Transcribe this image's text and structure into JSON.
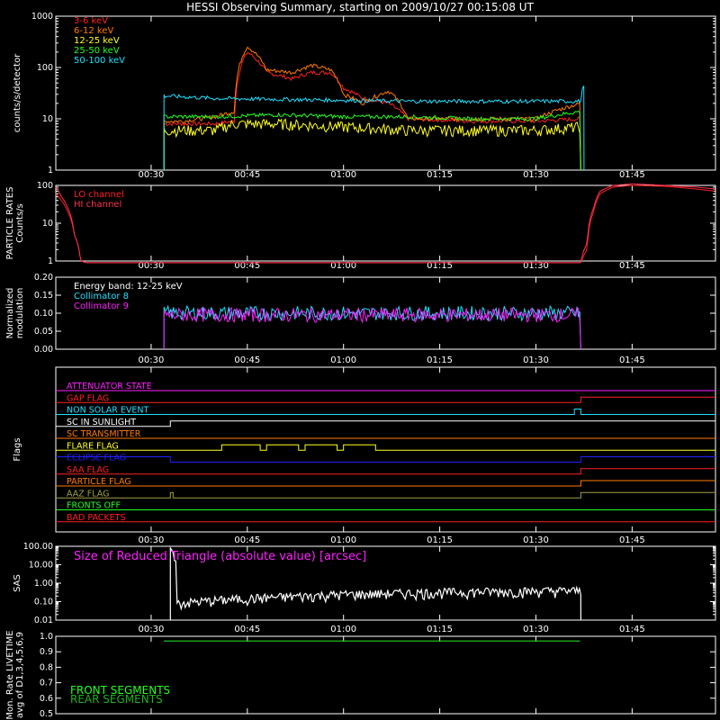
{
  "title": "HESSI Observing Summary, starting on 2009/10/27 00:15:08 UT",
  "time_ticks": [
    "00:30",
    "00:45",
    "01:00",
    "01:15",
    "01:30",
    "01:45"
  ],
  "colors": {
    "bg": "#000000",
    "axes": "#ffffff",
    "e3_6": "#ff2020",
    "e6_12": "#ff7a00",
    "e12_25": "#ffff20",
    "e25_50": "#20ff20",
    "e50_100": "#20e0ff",
    "lo": "#ff2020",
    "hi": "#ff3050",
    "col8": "#20e0ff",
    "col9": "#ff20ff",
    "sas": "#ff20ff",
    "front": "#20ff20",
    "rear": "#20b020"
  },
  "chart_data": [
    {
      "type": "line",
      "name": "count-rates",
      "ylabel": "counts/s/detector",
      "yscale": "log",
      "ylim": [
        1,
        1000
      ],
      "yticks": [
        "1",
        "10",
        "100",
        "1000"
      ],
      "x_range": [
        "00:15:08",
        "01:58"
      ],
      "legend_position": "top-left",
      "series": [
        {
          "name": "3-6 keV",
          "x": [
            "00:32",
            "00:35",
            "00:40",
            "00:43",
            "00:45",
            "00:48",
            "00:52",
            "00:55",
            "00:58",
            "01:00",
            "01:03",
            "01:07",
            "01:10",
            "01:20",
            "01:30",
            "01:37"
          ],
          "y": [
            8,
            8,
            8,
            9,
            200,
            80,
            60,
            80,
            80,
            40,
            25,
            20,
            10,
            9,
            9,
            10
          ]
        },
        {
          "name": "6-12 keV",
          "x": [
            "00:32",
            "00:35",
            "00:40",
            "00:43",
            "00:45",
            "00:48",
            "00:52",
            "00:55",
            "00:58",
            "01:00",
            "01:03",
            "01:07",
            "01:10",
            "01:20",
            "01:30",
            "01:37"
          ],
          "y": [
            9,
            9,
            11,
            14,
            260,
            90,
            80,
            110,
            90,
            30,
            20,
            35,
            10,
            10,
            10,
            20
          ]
        },
        {
          "name": "12-25 keV",
          "x": [
            "00:32",
            "00:40",
            "00:43",
            "00:50",
            "01:00",
            "01:10",
            "01:20",
            "01:30",
            "01:37"
          ],
          "y": [
            6,
            6,
            8,
            8,
            7,
            6,
            6,
            6,
            7
          ]
        },
        {
          "name": "25-50 keV",
          "x": [
            "00:32",
            "00:40",
            "00:50",
            "01:00",
            "01:10",
            "01:20",
            "01:30",
            "01:37"
          ],
          "y": [
            11,
            11,
            12,
            11,
            11,
            10,
            10,
            14
          ]
        },
        {
          "name": "50-100 keV",
          "x": [
            "00:32",
            "00:40",
            "00:50",
            "01:00",
            "01:10",
            "01:20",
            "01:30",
            "01:37",
            "01:37:30"
          ],
          "y": [
            28,
            25,
            24,
            23,
            22,
            22,
            22,
            22,
            50
          ]
        }
      ]
    },
    {
      "type": "line",
      "name": "particle-rates",
      "ylabel": "PARTICLE RATES Counts/s",
      "yscale": "log",
      "ylim": [
        1,
        100
      ],
      "yticks": [
        "1",
        "10",
        "100"
      ],
      "series": [
        {
          "name": "LO channel",
          "x": [
            "00:15:08",
            "00:16",
            "00:17",
            "00:18",
            "00:19",
            "00:20",
            "01:37",
            "01:38",
            "01:39",
            "01:40",
            "01:42",
            "01:45",
            "01:50",
            "01:55",
            "01:58"
          ],
          "y": [
            60,
            40,
            20,
            5,
            1,
            0.9,
            0.9,
            2,
            20,
            60,
            90,
            100,
            95,
            80,
            70
          ]
        },
        {
          "name": "HI channel",
          "x": [
            "00:15:08",
            "00:16",
            "00:17",
            "00:18",
            "00:19",
            "00:20",
            "01:37",
            "01:38",
            "01:39",
            "01:40",
            "01:42",
            "01:45",
            "01:50",
            "01:55",
            "01:58"
          ],
          "y": [
            90,
            50,
            25,
            5,
            1,
            0.9,
            0.9,
            3,
            25,
            70,
            100,
            110,
            100,
            90,
            80
          ]
        }
      ]
    },
    {
      "type": "line",
      "name": "modulation",
      "ylabel": "Normalized modulation",
      "ylim": [
        0,
        0.2
      ],
      "yticks": [
        "0.00",
        "0.05",
        "0.10",
        "0.15",
        "0.20"
      ],
      "annotation": "Energy band: 12-25 keV",
      "series": [
        {
          "name": "Collimator 8",
          "x": [
            "00:32",
            "01:37"
          ],
          "y": [
            0.1,
            0.1
          ]
        },
        {
          "name": "Collimator 9",
          "x": [
            "00:32",
            "01:37"
          ],
          "y": [
            0.095,
            0.095
          ]
        }
      ]
    },
    {
      "type": "line",
      "name": "flags",
      "ylabel": "Flags",
      "series": [
        {
          "name": "ATTENUATOR STATE",
          "color": "#ff20ff",
          "x": [],
          "y": []
        },
        {
          "name": "GAP FLAG",
          "color": "#ff2020",
          "x": [
            "01:37"
          ],
          "y": [
            1
          ]
        },
        {
          "name": "NON SOLAR EVENT",
          "color": "#20e0ff",
          "x": [
            "01:36",
            "01:37"
          ],
          "y": [
            1,
            0
          ]
        },
        {
          "name": "SC IN SUNLIGHT",
          "color": "#ffffff",
          "x": [
            "00:33"
          ],
          "y": [
            1
          ]
        },
        {
          "name": "SC TRANSMITTER",
          "color": "#ff7a00",
          "x": [],
          "y": []
        },
        {
          "name": "FLARE FLAG",
          "color": "#ffff20",
          "x": [
            "00:41",
            "00:47",
            "00:48",
            "00:53",
            "00:54",
            "00:59",
            "01:00",
            "01:05"
          ],
          "y": [
            1,
            0,
            1,
            0,
            1,
            0,
            1,
            0
          ]
        },
        {
          "name": "ECLIPSE FLAG",
          "color": "#2020ff",
          "x": [
            "00:33",
            "01:37"
          ],
          "y": [
            0,
            1
          ]
        },
        {
          "name": "SAA FLAG",
          "color": "#ff2020",
          "x": [
            "01:37"
          ],
          "y": [
            1
          ]
        },
        {
          "name": "PARTICLE FLAG",
          "color": "#ff7a00",
          "x": [
            "01:37"
          ],
          "y": [
            1
          ]
        },
        {
          "name": "AAZ FLAG",
          "color": "#a0a040",
          "x": [
            "00:33",
            "01:37"
          ],
          "y": [
            1,
            1
          ]
        },
        {
          "name": "FRONTS OFF",
          "color": "#20ff20",
          "x": [],
          "y": []
        },
        {
          "name": "BAD PACKETS",
          "color": "#ff2020",
          "x": [],
          "y": []
        }
      ]
    },
    {
      "type": "line",
      "name": "sas",
      "ylabel": "SAS",
      "yscale": "log",
      "ylim": [
        0.01,
        100
      ],
      "yticks": [
        "0.01",
        "0.10",
        "1.00",
        "10.00",
        "100.00"
      ],
      "annotation": "Size of Reduced Triangle (absolute value) [arcsec]",
      "series": [
        {
          "name": "reduced-triangle",
          "x": [
            "00:33",
            "00:34",
            "00:40",
            "00:50",
            "01:00",
            "01:10",
            "01:20",
            "01:30",
            "01:37"
          ],
          "y": [
            80,
            0.08,
            0.12,
            0.18,
            0.25,
            0.3,
            0.35,
            0.38,
            0.4
          ]
        }
      ]
    },
    {
      "type": "line",
      "name": "livetime",
      "ylabel": "Mon. Rate LIVETIME avg of D1,3,4,5,6,9",
      "ylim": [
        0.5,
        1.0
      ],
      "yticks": [
        "0.5",
        "0.6",
        "0.7",
        "0.8",
        "0.9",
        "1.0"
      ],
      "series": [
        {
          "name": "FRONT SEGMENTS",
          "x": [
            "00:32",
            "01:37"
          ],
          "y": [
            0.97,
            0.97
          ]
        },
        {
          "name": "REAR SEGMENTS",
          "x": [
            "00:32",
            "01:37"
          ],
          "y": [
            0.97,
            0.97
          ]
        }
      ]
    }
  ]
}
